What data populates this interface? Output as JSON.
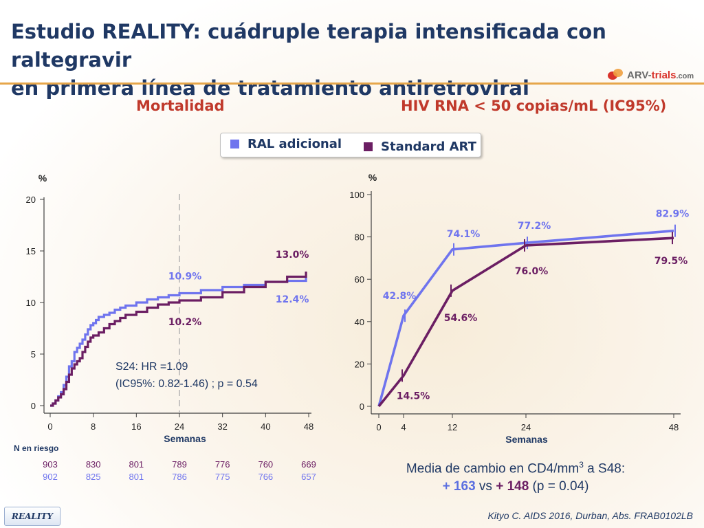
{
  "header": {
    "title_line1": "Estudio REALITY: cuádruple terapia intensificada con raltegravir",
    "title_line2": "en primera línea de tratamiento antiretroviral",
    "logo": {
      "brand": "ARV-",
      "brand_highlight": "trials",
      "brand_suffix": ".com"
    }
  },
  "subtitles": {
    "left": "Mortalidad",
    "right": "HIV RNA < 50 copias/mL (IC95%)"
  },
  "legend": [
    {
      "label": "RAL adicional",
      "color": "#6f74ee"
    },
    {
      "label": "Standard ART",
      "color": "#6b1e63"
    }
  ],
  "chart_data": [
    {
      "type": "line",
      "title": "Mortalidad",
      "ylabel": "%",
      "xlabel": "Semanas",
      "xticks": [
        0,
        8,
        16,
        24,
        32,
        40,
        48
      ],
      "yticks": [
        0,
        5,
        10,
        15,
        20
      ],
      "xlim": [
        0,
        48
      ],
      "ylim": [
        0,
        20
      ],
      "reference_line_x": 24,
      "series": [
        {
          "name": "RAL adicional",
          "color": "#6f74ee",
          "points": [
            [
              0,
              0
            ],
            [
              0.5,
              0.2
            ],
            [
              1,
              0.5
            ],
            [
              1.5,
              0.9
            ],
            [
              2,
              1.3
            ],
            [
              2.5,
              2.0
            ],
            [
              3,
              2.8
            ],
            [
              3.5,
              3.8
            ],
            [
              4,
              4.3
            ],
            [
              4.5,
              5.2
            ],
            [
              5,
              5.6
            ],
            [
              5.5,
              6.0
            ],
            [
              6,
              6.4
            ],
            [
              6.5,
              6.9
            ],
            [
              7,
              7.4
            ],
            [
              7.5,
              7.8
            ],
            [
              8,
              8.0
            ],
            [
              8.5,
              8.3
            ],
            [
              9,
              8.6
            ],
            [
              10,
              8.8
            ],
            [
              11,
              9.0
            ],
            [
              12,
              9.3
            ],
            [
              13,
              9.5
            ],
            [
              14,
              9.7
            ],
            [
              16,
              10.0
            ],
            [
              18,
              10.3
            ],
            [
              20,
              10.5
            ],
            [
              22,
              10.7
            ],
            [
              24,
              10.9
            ],
            [
              28,
              11.2
            ],
            [
              32,
              11.5
            ],
            [
              36,
              11.7
            ],
            [
              40,
              12.0
            ],
            [
              44,
              12.1
            ],
            [
              47.5,
              12.4
            ]
          ],
          "labels": [
            {
              "x": 24,
              "value": "10.9%",
              "pos": "above"
            },
            {
              "x": 47.5,
              "value": "12.4%",
              "pos": "below"
            }
          ]
        },
        {
          "name": "Standard ART",
          "color": "#6b1e63",
          "points": [
            [
              0,
              0
            ],
            [
              0.5,
              0.2
            ],
            [
              1,
              0.5
            ],
            [
              1.5,
              0.8
            ],
            [
              2,
              1.1
            ],
            [
              2.5,
              1.6
            ],
            [
              3,
              2.3
            ],
            [
              3.5,
              3.0
            ],
            [
              4,
              3.6
            ],
            [
              4.5,
              4.0
            ],
            [
              5,
              4.3
            ],
            [
              5.5,
              4.6
            ],
            [
              6,
              5.2
            ],
            [
              6.5,
              5.7
            ],
            [
              7,
              6.2
            ],
            [
              7.5,
              6.6
            ],
            [
              8,
              6.8
            ],
            [
              9,
              7.1
            ],
            [
              10,
              7.5
            ],
            [
              11,
              7.9
            ],
            [
              12,
              8.2
            ],
            [
              13,
              8.5
            ],
            [
              14,
              8.8
            ],
            [
              16,
              9.1
            ],
            [
              18,
              9.5
            ],
            [
              20,
              9.8
            ],
            [
              22,
              10.0
            ],
            [
              24,
              10.2
            ],
            [
              28,
              10.5
            ],
            [
              32,
              11.0
            ],
            [
              36,
              11.5
            ],
            [
              40,
              12.0
            ],
            [
              44,
              12.5
            ],
            [
              47.5,
              13.0
            ]
          ],
          "labels": [
            {
              "x": 24,
              "value": "10.2%",
              "pos": "below"
            },
            {
              "x": 47.5,
              "value": "13.0%",
              "pos": "above"
            }
          ]
        }
      ],
      "annotation_line1": "S24: HR =1.09",
      "annotation_line2": "(IC95%: 0.82-1.46) ;  p = 0.54",
      "at_risk": {
        "label": "N en riesgo",
        "rows": [
          {
            "name": "Standard ART",
            "color": "#6b1e63",
            "values": [
              "903",
              "830",
              "801",
              "789",
              "776",
              "760",
              "669"
            ]
          },
          {
            "name": "RAL adicional",
            "color": "#6f74ee",
            "values": [
              "902",
              "825",
              "801",
              "786",
              "775",
              "766",
              "657"
            ]
          }
        ]
      }
    },
    {
      "type": "line",
      "title": "HIV RNA < 50 copias/mL (IC95%)",
      "ylabel": "%",
      "xlabel": "Semanas",
      "xticks": [
        0,
        4,
        12,
        24,
        48
      ],
      "yticks": [
        0,
        20,
        40,
        60,
        80,
        100
      ],
      "ylim": [
        0,
        100
      ],
      "series": [
        {
          "name": "RAL adicional",
          "color": "#6f74ee",
          "x": [
            0,
            4,
            12,
            24,
            48
          ],
          "y": [
            0,
            42.8,
            74.1,
            77.2,
            82.9
          ],
          "labels": [
            "",
            "42.8%",
            "74.1%",
            "77.2%",
            "82.9%"
          ]
        },
        {
          "name": "Standard ART",
          "color": "#6b1e63",
          "x": [
            0,
            4,
            12,
            24,
            48
          ],
          "y": [
            0,
            14.5,
            54.6,
            76.0,
            79.5
          ],
          "labels": [
            "",
            "14.5%",
            "54.6%",
            "76.0%",
            "79.5%"
          ]
        }
      ]
    }
  ],
  "cd4_note": {
    "line1_pre": "Media de cambio en CD4/mm",
    "line1_sup": "3",
    "line1_post": " a S48:",
    "ral_value": "+ 163",
    "vs": " vs ",
    "std_value": "+ 148",
    "p": " (p = 0.04)"
  },
  "footer": {
    "tag": "REALITY",
    "citation": "Kityo C. AIDS 2016, Durban, Abs. FRAB0102LB"
  }
}
